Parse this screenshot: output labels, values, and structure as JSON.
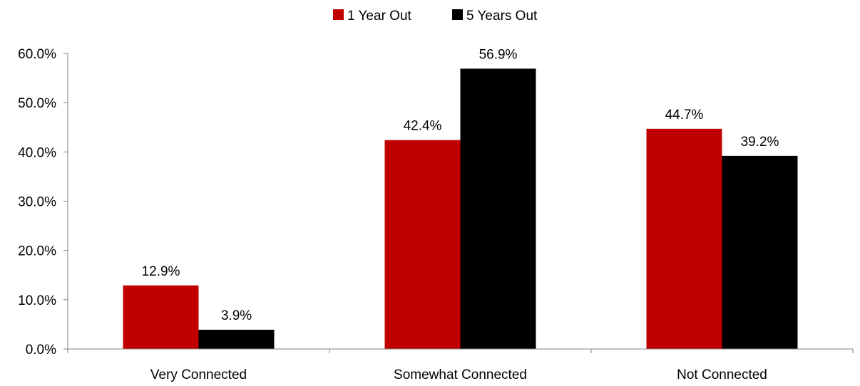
{
  "chart_data": {
    "type": "bar",
    "title": "",
    "xlabel": "",
    "ylabel": "",
    "categories": [
      "Very Connected",
      "Somewhat Connected",
      "Not Connected"
    ],
    "series": [
      {
        "name": "1 Year Out",
        "color": "#C00000",
        "values": [
          12.9,
          42.4,
          44.7
        ],
        "labels": [
          "12.9%",
          "42.4%",
          "44.7%"
        ]
      },
      {
        "name": "5 Years Out",
        "color": "#000000",
        "values": [
          3.9,
          56.9,
          39.2
        ],
        "labels": [
          "3.9%",
          "56.9%",
          "39.2%"
        ]
      }
    ],
    "ylim": [
      0,
      60
    ],
    "yticks": [
      0,
      10,
      20,
      30,
      40,
      50,
      60
    ],
    "ytick_labels": [
      "0.0%",
      "10.0%",
      "20.0%",
      "30.0%",
      "40.0%",
      "50.0%",
      "60.0%"
    ],
    "grid": false,
    "legend_position": "top-center"
  }
}
